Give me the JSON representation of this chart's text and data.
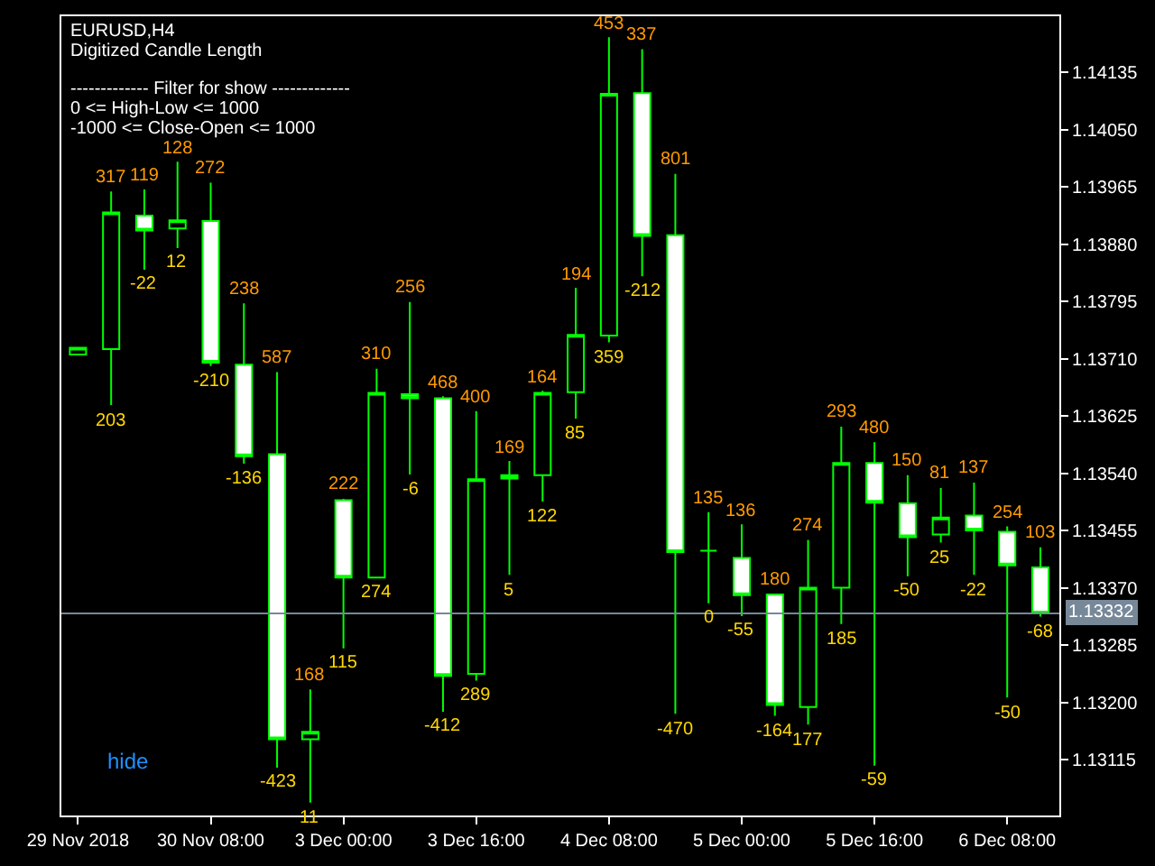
{
  "chart_data": {
    "type": "candlestick",
    "title": "EURUSD,H4",
    "categories": [
      "29 Nov 2018",
      null,
      null,
      null,
      "30 Nov 08:00",
      null,
      null,
      null,
      "3 Dec 00:00",
      null,
      null,
      null,
      "3 Dec 16:00",
      null,
      null,
      null,
      "4 Dec 08:00",
      null,
      null,
      null,
      "5 Dec 00:00",
      null,
      null,
      null,
      "5 Dec 16:00",
      null,
      null,
      null,
      "6 Dec 08:00",
      null
    ],
    "ohlc": [
      [
        1.13716,
        1.13726,
        1.13716,
        1.13726
      ],
      [
        1.13724,
        1.13958,
        1.13641,
        1.13927
      ],
      [
        1.13922,
        1.13961,
        1.13842,
        1.139
      ],
      [
        1.13903,
        1.14002,
        1.13874,
        1.13915
      ],
      [
        1.13914,
        1.13971,
        1.13699,
        1.13704
      ],
      [
        1.13701,
        1.13792,
        1.13554,
        1.13565
      ],
      [
        1.13568,
        1.1369,
        1.13103,
        1.13145
      ],
      [
        1.13145,
        1.13219,
        1.13051,
        1.13156
      ],
      [
        1.135,
        1.13502,
        1.1328,
        1.13385
      ],
      [
        1.13385,
        1.13695,
        1.13385,
        1.13659
      ],
      [
        1.13657,
        1.13794,
        1.13538,
        1.13651
      ],
      [
        1.13651,
        1.13654,
        1.13186,
        1.13239
      ],
      [
        1.13242,
        1.13632,
        1.13232,
        1.13531
      ],
      [
        1.13532,
        1.13558,
        1.13389,
        1.13537
      ],
      [
        1.13537,
        1.13662,
        1.13498,
        1.13659
      ],
      [
        1.1366,
        1.13815,
        1.13621,
        1.13745
      ],
      [
        1.13744,
        1.14187,
        1.13734,
        1.14103
      ],
      [
        1.14104,
        1.14169,
        1.13832,
        1.13892
      ],
      [
        1.13893,
        1.13984,
        1.13183,
        1.13423
      ],
      [
        1.13425,
        1.13482,
        1.13347,
        1.13425
      ],
      [
        1.13414,
        1.13464,
        1.13328,
        1.13359
      ],
      [
        1.1336,
        1.1336,
        1.1318,
        1.13196
      ],
      [
        1.13193,
        1.13441,
        1.13167,
        1.1337
      ],
      [
        1.1337,
        1.13609,
        1.13316,
        1.13555
      ],
      [
        1.13555,
        1.13586,
        1.13106,
        1.13496
      ],
      [
        1.13495,
        1.13537,
        1.13387,
        1.13445
      ],
      [
        1.13449,
        1.13518,
        1.13437,
        1.13474
      ],
      [
        1.13477,
        1.13526,
        1.13389,
        1.13455
      ],
      [
        1.13453,
        1.13461,
        1.13207,
        1.13403
      ],
      [
        1.134,
        1.1343,
        1.13327,
        1.13332
      ]
    ],
    "ylim": [
      1.13032,
      1.14218
    ],
    "yticks": [
      1.14135,
      {
        "value": 1.1405,
        "label": "1.14050"
      },
      1.13965,
      {
        "value": 1.1388,
        "label": "1.13880"
      },
      1.13795,
      {
        "value": 1.1371,
        "label": "1.13710"
      },
      1.13625,
      {
        "value": 1.1354,
        "label": "1.13540"
      },
      1.13455,
      {
        "value": 1.1337,
        "label": "1.13370"
      },
      1.13285,
      {
        "value": 1.132,
        "label": "1.13200"
      },
      1.13115
    ],
    "ref_lines": [
      {
        "axis": "y",
        "value": 1.13332,
        "label": "1.13332",
        "color": "#778899"
      }
    ],
    "grid": false,
    "legend": false,
    "annotations": [
      "Digitized Candle Length",
      "------------- Filter for show -------------",
      "0 <= High-Low <= 1000",
      "-1000 <= Close-Open <= 1000",
      "hide",
      {
        "text": "317",
        "y": 1.13958
      },
      {
        "text": "203",
        "y": 1.13641
      },
      {
        "text": "119",
        "y": 1.13961
      },
      {
        "text": "-22",
        "y": 1.13842
      },
      {
        "text": "128",
        "y": 1.14002
      },
      {
        "text": "12",
        "y": 1.13874
      },
      {
        "text": "272",
        "y": 1.13971
      },
      {
        "text": "-210",
        "y": 1.13699
      },
      {
        "text": "238",
        "y": 1.13792
      },
      {
        "text": "-136",
        "y": 1.13554
      },
      {
        "text": "587",
        "y": 1.1369
      },
      {
        "text": "-423",
        "y": 1.13103
      },
      {
        "text": "168",
        "y": 1.13219
      },
      {
        "text": "11",
        "y": 1.13051
      },
      {
        "text": "222",
        "y": 1.13502
      },
      {
        "text": "115",
        "y": 1.1328
      },
      {
        "text": "310",
        "y": 1.13695
      },
      {
        "text": "274",
        "y": 1.13385
      },
      {
        "text": "256",
        "y": 1.13794
      },
      {
        "text": "-6",
        "y": 1.13538
      },
      {
        "text": "468",
        "y": 1.13654
      },
      {
        "text": "-412",
        "y": 1.13186
      },
      {
        "text": "400",
        "y": 1.13632
      },
      {
        "text": "289",
        "y": 1.13232
      },
      {
        "text": "169",
        "y": 1.13558
      },
      {
        "text": "5",
        "y": 1.13389
      },
      {
        "text": "164",
        "y": 1.13662
      },
      {
        "text": "122",
        "y": 1.13498
      },
      {
        "text": "194",
        "y": 1.13815
      },
      {
        "text": "85",
        "y": 1.13621
      },
      {
        "text": "453",
        "y": 1.14187
      },
      {
        "text": "359",
        "y": 1.13734
      },
      {
        "text": "337",
        "y": 1.14169
      },
      {
        "text": "-212",
        "y": 1.13832
      },
      {
        "text": "801",
        "y": 1.13984
      },
      {
        "text": "-470",
        "y": 1.13183
      },
      {
        "text": "135",
        "y": 1.13482
      },
      {
        "text": "0",
        "y": 1.13347
      },
      {
        "text": "136",
        "y": 1.13464
      },
      {
        "text": "-55",
        "y": 1.13328
      },
      {
        "text": "180",
        "y": 1.1336
      },
      {
        "text": "-164",
        "y": 1.1318
      },
      {
        "text": "274",
        "y": 1.13441
      },
      {
        "text": "177",
        "y": 1.13167
      },
      {
        "text": "293",
        "y": 1.13609
      },
      {
        "text": "185",
        "y": 1.13316
      },
      {
        "text": "480",
        "y": 1.13586
      },
      {
        "text": "-59",
        "y": 1.13106
      },
      {
        "text": "150",
        "y": 1.13537
      },
      {
        "text": "-50",
        "y": 1.13387
      },
      {
        "text": "81",
        "y": 1.13518
      },
      {
        "text": "25",
        "y": 1.13437
      },
      {
        "text": "137",
        "y": 1.13526
      },
      {
        "text": "-22",
        "y": 1.13389
      },
      {
        "text": "254",
        "y": 1.13461
      },
      {
        "text": "-50",
        "y": 1.13207
      },
      {
        "text": "103",
        "y": 1.1343
      },
      {
        "text": "-68",
        "y": 1.13327
      }
    ]
  }
}
